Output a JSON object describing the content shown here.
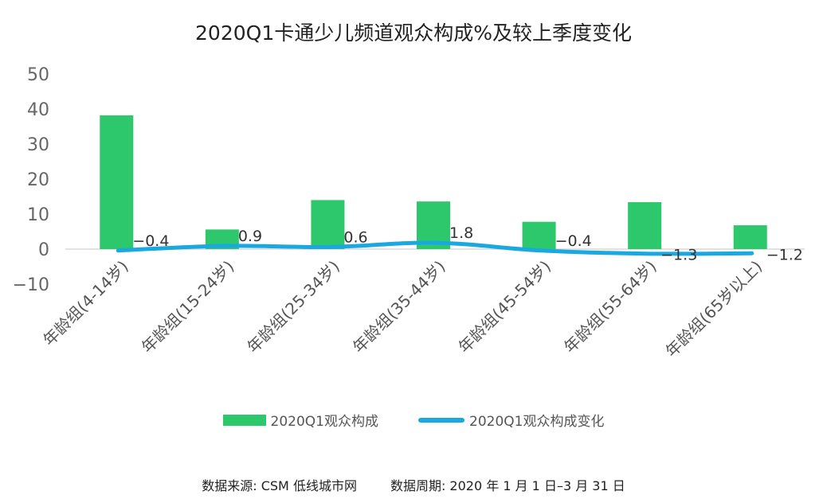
{
  "chart_data": {
    "type": "bar",
    "title": "2020Q1卡通少儿频道观众构成%及较上季度变化",
    "categories": [
      "年龄组(4-14岁)",
      "年龄组(15-24岁)",
      "年龄组(25-34岁)",
      "年龄组(35-44岁)",
      "年龄组(45-54岁)",
      "年龄组(55-64岁)",
      "年龄组(65岁以上)"
    ],
    "series": [
      {
        "name": "2020Q1观众构成",
        "type": "bar",
        "color": "#2dc86b",
        "values": [
          38.2,
          5.6,
          14.0,
          13.6,
          7.8,
          13.4,
          6.8
        ]
      },
      {
        "name": "2020Q1观众构成变化",
        "type": "line",
        "color": "#1ba8e0",
        "values": [
          -0.4,
          0.9,
          0.6,
          1.8,
          -0.4,
          -1.3,
          -1.2
        ],
        "labels": [
          "−0.4",
          "0.9",
          "0.6",
          "1.8",
          "−0.4",
          "−1.3",
          "−1.2"
        ]
      }
    ],
    "ylim": [
      -10,
      50
    ],
    "yticks": [
      "−10",
      "0",
      "10",
      "20",
      "30",
      "40",
      "50"
    ],
    "ytick_values": [
      -10,
      0,
      10,
      20,
      30,
      40,
      50
    ],
    "xlabel": "",
    "ylabel": ""
  },
  "footer": {
    "source": "数据来源:  CSM 低线城市网",
    "period": "数据周期:  2020 年 1 月 1 日–3 月 31 日"
  }
}
